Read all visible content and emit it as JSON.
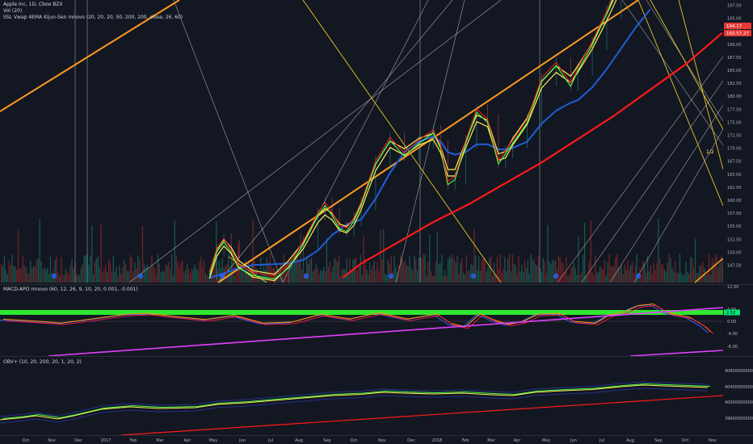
{
  "legend": {
    "symbol_line": "Apple Inc, 1D, Cboe BZX",
    "vol_line": "Vol (20)",
    "ssl_line": "SSL Vwap 4EMA Kijun-Sen mnovo (20, 20, 20, 50, 200, 200, close, 26, 60)",
    "macd_line": "MACD-APO mnovo (60, 12, 26, 9, 10, 20, 0.001, -0.001)",
    "obv_line": "OBV+ (10, 20, 200, 20, 1, 20, 2)"
  },
  "price_badges": [
    {
      "value": "194.17",
      "color": "#e53935"
    },
    {
      "value": "192.57.27",
      "color": "#e53935"
    }
  ],
  "macd_badge": {
    "value": "2.52",
    "color": "#00e676"
  },
  "annotation": {
    "text": "1/2"
  },
  "colors": {
    "background": "#131722",
    "ma_red": "#ff1a1a",
    "ma_blue": "#1e5fd8",
    "ssl_green": "#4cff4c",
    "ssl_yellow": "#ffee55",
    "trend_orange": "#ff9a1f",
    "fan_yellow": "#e8c628",
    "fan_white": "#d0d0d0",
    "macd_line": "#ff9800",
    "zero_line": "#33ff33",
    "magenta_trend": "#e040fb",
    "volume_up": "#1b6b5e",
    "volume_down": "#8b2a2a"
  },
  "chart_data": [
    {
      "type": "line",
      "panel": "price",
      "ylim": [
        145.6,
        198.4
      ],
      "y_ticks": [
        "197.50",
        "195.00",
        "192.50",
        "190.00",
        "187.50",
        "185.00",
        "182.50",
        "180.00",
        "177.50",
        "175.00",
        "172.50",
        "170.00",
        "167.50",
        "165.00",
        "162.50",
        "160.00",
        "157.50",
        "155.00",
        "152.50",
        "150.00",
        "147.50"
      ],
      "series_close": [
        [
          0.29,
          146.5
        ],
        [
          0.3,
          151
        ],
        [
          0.31,
          153
        ],
        [
          0.32,
          151
        ],
        [
          0.33,
          148
        ],
        [
          0.35,
          146.5
        ],
        [
          0.38,
          145.8
        ],
        [
          0.4,
          148
        ],
        [
          0.42,
          152.5
        ],
        [
          0.44,
          158
        ],
        [
          0.45,
          160
        ],
        [
          0.46,
          158
        ],
        [
          0.47,
          155.5
        ],
        [
          0.48,
          155
        ],
        [
          0.49,
          157
        ],
        [
          0.5,
          160
        ],
        [
          0.52,
          168
        ],
        [
          0.54,
          172.5
        ],
        [
          0.56,
          169.5
        ],
        [
          0.58,
          172
        ],
        [
          0.6,
          174
        ],
        [
          0.61,
          171
        ],
        [
          0.62,
          164
        ],
        [
          0.63,
          165
        ],
        [
          0.645,
          172
        ],
        [
          0.66,
          178
        ],
        [
          0.675,
          176
        ],
        [
          0.69,
          168
        ],
        [
          0.7,
          170
        ],
        [
          0.71,
          172
        ],
        [
          0.73,
          176
        ],
        [
          0.75,
          184
        ],
        [
          0.77,
          187
        ],
        [
          0.79,
          183
        ],
        [
          0.8,
          186
        ],
        [
          0.82,
          191
        ],
        [
          0.84,
          197
        ],
        [
          0.86,
          204
        ]
      ],
      "series_ssl_yellow": [
        [
          0.29,
          146.2
        ],
        [
          0.3,
          150.5
        ],
        [
          0.31,
          152.5
        ],
        [
          0.32,
          151
        ],
        [
          0.33,
          148.5
        ],
        [
          0.35,
          146.5
        ],
        [
          0.38,
          145.8
        ],
        [
          0.4,
          148.5
        ],
        [
          0.42,
          152
        ],
        [
          0.44,
          157
        ],
        [
          0.45,
          158.5
        ],
        [
          0.46,
          157.5
        ],
        [
          0.47,
          155.5
        ],
        [
          0.48,
          155
        ],
        [
          0.49,
          156.5
        ],
        [
          0.5,
          159.5
        ],
        [
          0.52,
          167
        ],
        [
          0.54,
          171.5
        ],
        [
          0.56,
          170
        ],
        [
          0.58,
          172
        ],
        [
          0.6,
          173
        ],
        [
          0.61,
          170.5
        ],
        [
          0.62,
          166
        ],
        [
          0.63,
          166
        ],
        [
          0.645,
          171.5
        ],
        [
          0.66,
          176.5
        ],
        [
          0.675,
          175.5
        ],
        [
          0.69,
          169
        ],
        [
          0.7,
          169.5
        ],
        [
          0.71,
          172
        ],
        [
          0.73,
          176
        ],
        [
          0.75,
          183
        ],
        [
          0.77,
          186
        ],
        [
          0.79,
          184
        ],
        [
          0.8,
          186
        ],
        [
          0.82,
          190.5
        ],
        [
          0.84,
          196
        ],
        [
          0.86,
          202
        ]
      ],
      "series_blue": [
        [
          0.29,
          145.7
        ],
        [
          0.31,
          146.6
        ],
        [
          0.33,
          147.6
        ],
        [
          0.35,
          148.2
        ],
        [
          0.37,
          148.3
        ],
        [
          0.4,
          148.5
        ],
        [
          0.42,
          149.2
        ],
        [
          0.44,
          151
        ],
        [
          0.46,
          154
        ],
        [
          0.48,
          156
        ],
        [
          0.5,
          157
        ],
        [
          0.52,
          161
        ],
        [
          0.54,
          166
        ],
        [
          0.56,
          170
        ],
        [
          0.58,
          172
        ],
        [
          0.6,
          173
        ],
        [
          0.61,
          172
        ],
        [
          0.62,
          170
        ],
        [
          0.63,
          169.5
        ],
        [
          0.645,
          170
        ],
        [
          0.66,
          171.5
        ],
        [
          0.675,
          171.5
        ],
        [
          0.69,
          170.5
        ],
        [
          0.7,
          170.5
        ],
        [
          0.71,
          170.8
        ],
        [
          0.73,
          172
        ],
        [
          0.75,
          175.5
        ],
        [
          0.77,
          178
        ],
        [
          0.79,
          179.5
        ],
        [
          0.8,
          180
        ],
        [
          0.82,
          182.5
        ],
        [
          0.84,
          186
        ],
        [
          0.86,
          190
        ],
        [
          0.88,
          194
        ],
        [
          0.9,
          197.5
        ]
      ],
      "series_red": [
        [
          0.475,
          145.8
        ],
        [
          0.5,
          148.5
        ],
        [
          0.55,
          152.5
        ],
        [
          0.6,
          156.5
        ],
        [
          0.65,
          160
        ],
        [
          0.7,
          164
        ],
        [
          0.75,
          168
        ],
        [
          0.8,
          172.5
        ],
        [
          0.85,
          177
        ],
        [
          0.9,
          182
        ],
        [
          0.95,
          187
        ],
        [
          0.975,
          190
        ],
        [
          1.0,
          193
        ]
      ]
    },
    {
      "type": "line",
      "panel": "macd",
      "y_ticks": [
        "12.00",
        "4.00",
        "0.00",
        "-4.00",
        "-8.00"
      ],
      "series_macd": [
        [
          0.0,
          0.5
        ],
        [
          0.05,
          -0.3
        ],
        [
          0.08,
          -1
        ],
        [
          0.12,
          0.5
        ],
        [
          0.17,
          2.4
        ],
        [
          0.2,
          2.8
        ],
        [
          0.24,
          1.5
        ],
        [
          0.28,
          0.4
        ],
        [
          0.32,
          2
        ],
        [
          0.36,
          -1
        ],
        [
          0.4,
          -0.6
        ],
        [
          0.44,
          2.4
        ],
        [
          0.48,
          0.6
        ],
        [
          0.52,
          3
        ],
        [
          0.56,
          0.6
        ],
        [
          0.6,
          2.5
        ],
        [
          0.62,
          -1.2
        ],
        [
          0.64,
          -2.4
        ],
        [
          0.66,
          2.6
        ],
        [
          0.68,
          0.2
        ],
        [
          0.7,
          -1.5
        ],
        [
          0.72,
          -0.3
        ],
        [
          0.74,
          2.4
        ],
        [
          0.77,
          2.8
        ],
        [
          0.79,
          -0.3
        ],
        [
          0.82,
          -1
        ],
        [
          0.84,
          2.2
        ],
        [
          0.86,
          3.5
        ],
        [
          0.88,
          5.8
        ],
        [
          0.9,
          6.4
        ],
        [
          0.92,
          3
        ],
        [
          0.95,
          1.3
        ],
        [
          0.97,
          -2
        ],
        [
          0.98,
          -4.5
        ]
      ]
    },
    {
      "type": "line",
      "panel": "obv",
      "y_ticks": [
        "40800000000.00",
        "40400000000.00",
        "40000000000.00",
        "39600000000.00"
      ],
      "series_obv": [
        [
          0.0,
          -2
        ],
        [
          0.03,
          -1.5
        ],
        [
          0.05,
          -1
        ],
        [
          0.08,
          -1.8
        ],
        [
          0.1,
          -1.1
        ],
        [
          0.14,
          0.6
        ],
        [
          0.18,
          1.2
        ],
        [
          0.22,
          0.8
        ],
        [
          0.27,
          1
        ],
        [
          0.3,
          1.8
        ],
        [
          0.34,
          2.2
        ],
        [
          0.38,
          2.8
        ],
        [
          0.42,
          3.4
        ],
        [
          0.46,
          4
        ],
        [
          0.5,
          4.3
        ],
        [
          0.53,
          4.8
        ],
        [
          0.56,
          4.6
        ],
        [
          0.6,
          4.4
        ],
        [
          0.64,
          4.6
        ],
        [
          0.68,
          4.2
        ],
        [
          0.71,
          4
        ],
        [
          0.74,
          4.8
        ],
        [
          0.78,
          5.2
        ],
        [
          0.82,
          5.5
        ],
        [
          0.86,
          6.2
        ],
        [
          0.89,
          6.6
        ],
        [
          0.92,
          6.4
        ],
        [
          0.95,
          6.2
        ],
        [
          0.98,
          6
        ]
      ]
    }
  ],
  "x_ticks": [
    {
      "label": "Oct",
      "x": 32
    },
    {
      "label": "Nov",
      "x": 64
    },
    {
      "label": "Dec",
      "x": 97
    },
    {
      "label": "2017",
      "x": 131
    },
    {
      "label": "Feb",
      "x": 165
    },
    {
      "label": "Mar",
      "x": 198
    },
    {
      "label": "Apr",
      "x": 232
    },
    {
      "label": "May",
      "x": 264
    },
    {
      "label": "Jun",
      "x": 300
    },
    {
      "label": "Jul",
      "x": 335
    },
    {
      "label": "Aug",
      "x": 370
    },
    {
      "label": "Sep",
      "x": 405
    },
    {
      "label": "Oct",
      "x": 438
    },
    {
      "label": "Nov",
      "x": 473
    },
    {
      "label": "Dec",
      "x": 509
    },
    {
      "label": "2018",
      "x": 541
    },
    {
      "label": "Feb",
      "x": 576
    },
    {
      "label": "Mar",
      "x": 608
    },
    {
      "label": "Apr",
      "x": 640
    },
    {
      "label": "May",
      "x": 676
    },
    {
      "label": "Jun",
      "x": 710
    },
    {
      "label": "Jul",
      "x": 745
    },
    {
      "label": "Aug",
      "x": 780
    },
    {
      "label": "Sep",
      "x": 815
    },
    {
      "label": "Oct",
      "x": 848
    },
    {
      "label": "Nov",
      "x": 882
    }
  ]
}
